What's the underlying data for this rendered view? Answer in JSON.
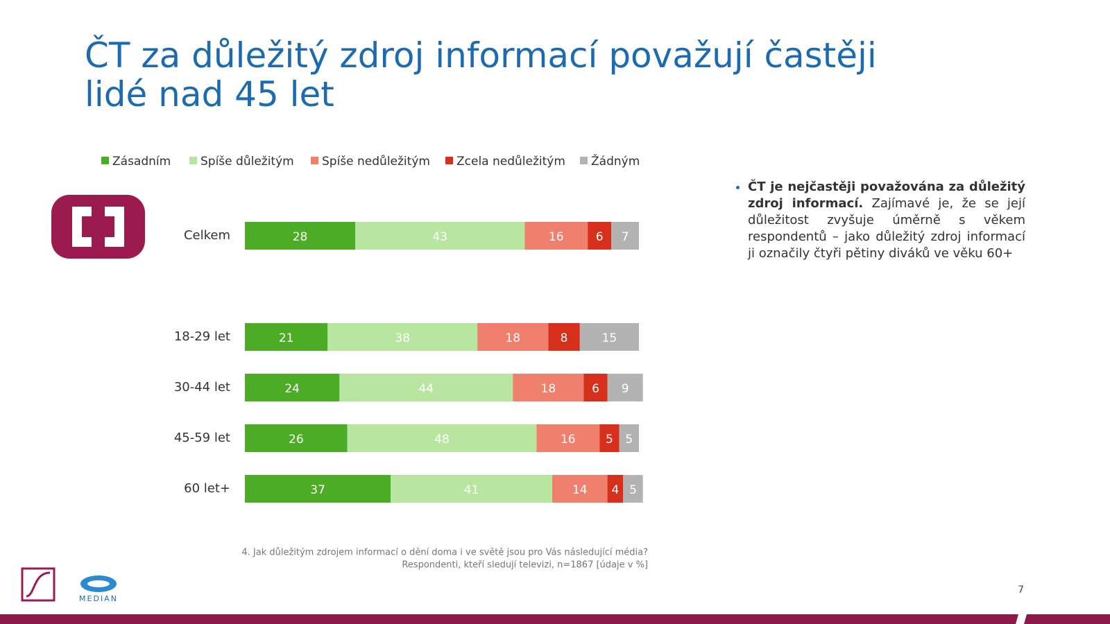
{
  "chart_data": {
    "type": "stacked-bar",
    "title": "ČT za důležitý zdroj informací považují častěji lidé nad 45 let",
    "categories": [
      "Celkem",
      "18-29 let",
      "30-44 let",
      "45-59 let",
      "60 let+"
    ],
    "series": [
      {
        "name": "Zásadním",
        "color": "#4dac26",
        "values": [
          28,
          21,
          24,
          26,
          37
        ]
      },
      {
        "name": "Spíše důležitým",
        "color": "#b8e6a0",
        "values": [
          43,
          38,
          44,
          48,
          41
        ]
      },
      {
        "name": "Spíše nedůležitým",
        "color": "#f0806e",
        "values": [
          16,
          18,
          18,
          16,
          14
        ]
      },
      {
        "name": "Zcela nedůležitým",
        "color": "#d6301c",
        "values": [
          6,
          8,
          6,
          5,
          4
        ]
      },
      {
        "name": "Žádným",
        "color": "#b3b3b3",
        "values": [
          7,
          15,
          9,
          5,
          5
        ]
      }
    ],
    "xlim": [
      0,
      100
    ],
    "notes": {
      "bold": "ČT je nejčastěji považována za důležitý zdroj informací.",
      "text": "Zajímavé je, že se její důležitost zvyšuje úměrně s věkem respondentů – jako důležitý zdroj informací ji označily  čtyři pětiny diváků ve věku 60+"
    },
    "footnote": [
      "4. Jak důležitým zdrojem informací o dění doma i ve světě jsou pro Vás následující média?",
      "Respondenti, kteří sledují televizi, n=1867  [údaje v %]"
    ],
    "brand": "MEDIAN",
    "page_number": "7"
  }
}
